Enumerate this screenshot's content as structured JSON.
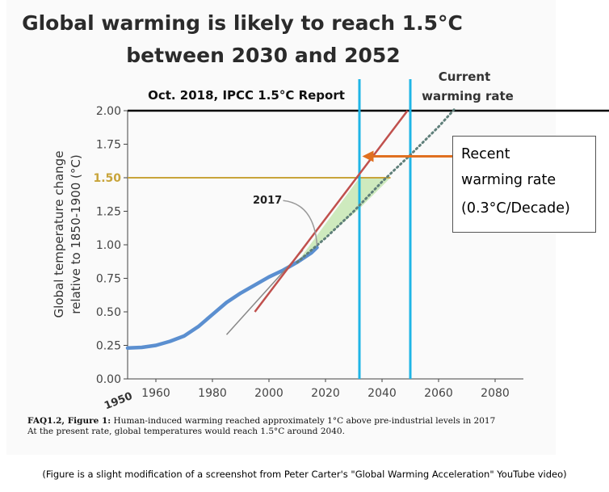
{
  "header": {
    "title_line1": "Global warming is likely to reach 1.5°C",
    "title_line2": "between 2030 and 2052"
  },
  "annotations": {
    "report_label": "Oct. 2018, IPCC 1.5°C Report",
    "current_rate_line1": "Current",
    "current_rate_line2": "warming rate",
    "year_label": "2017",
    "recent_rate_line1": "Recent",
    "recent_rate_line2": "warming rate",
    "recent_rate_line3": "(0.3°C/Decade)",
    "x_start_label": "1950"
  },
  "caption": {
    "bold": "FAQ1.2, Figure 1:",
    "line1": " Human-induced warming reached approximately 1°C above pre-industrial levels in 2017",
    "line2": "At the present rate, global temperatures would reach 1.5°C around 2040."
  },
  "source_note": "(Figure is a  slight modification of a screenshot from Peter Carter's \"Global Warming Acceleration\" YouTube video)",
  "colors": {
    "observed": "#5b8fd0",
    "red_line": "#c0504d",
    "vline": "#1fb5e6",
    "hline_150": "#c8a43a",
    "arrow": "#e07020",
    "fill": "#c6e6b3",
    "dotted": "#5f7f7a",
    "trend": "#888888"
  },
  "chart_data": {
    "type": "line",
    "xlabel": "",
    "ylabel_line1": "Global temperature change",
    "ylabel_line2": "relative to 1850-1900 (°C)",
    "xlim": [
      1950,
      2090
    ],
    "ylim": [
      0,
      2.0
    ],
    "x_ticks": [
      1960,
      1980,
      2000,
      2020,
      2040,
      2060,
      2080
    ],
    "x_tick_labels": [
      "1960",
      "1980",
      "2000",
      "2020",
      "2040",
      "2060",
      "2080"
    ],
    "y_ticks": [
      0,
      0.25,
      0.5,
      0.75,
      1.0,
      1.25,
      1.5,
      1.75,
      2.0
    ],
    "y_tick_labels": [
      "0.00",
      "0.25",
      "0.50",
      "0.75",
      "1.00",
      "1.25",
      "1.50",
      "1.75",
      "2.00"
    ],
    "series": [
      {
        "role": "observed",
        "x": [
          1950,
          1955,
          1960,
          1965,
          1970,
          1975,
          1980,
          1985,
          1990,
          1995,
          2000,
          2005,
          2010,
          2015,
          2017
        ],
        "y": [
          0.23,
          0.235,
          0.25,
          0.28,
          0.32,
          0.39,
          0.48,
          0.57,
          0.64,
          0.7,
          0.76,
          0.81,
          0.87,
          0.94,
          0.98
        ]
      },
      {
        "role": "projection_dotted",
        "x": [
          2010,
          2020,
          2030,
          2040,
          2050,
          2060,
          2066
        ],
        "y": [
          0.87,
          1.05,
          1.25,
          1.47,
          1.67,
          1.88,
          2.02
        ]
      },
      {
        "role": "faint_trend",
        "x": [
          1985,
          2012
        ],
        "y": [
          0.33,
          0.96
        ]
      },
      {
        "role": "recent_rate_line",
        "x": [
          1995,
          2049
        ],
        "y": [
          0.5,
          2.0
        ]
      }
    ],
    "reference_lines": {
      "horizontal": [
        {
          "y": 2.0,
          "x_from": 1950,
          "x_to": 2090
        },
        {
          "y": 1.5,
          "x_from": 1950,
          "x_to": 2043
        }
      ],
      "vertical": [
        {
          "x": 2032
        },
        {
          "x": 2050
        }
      ]
    },
    "shaded_region": {
      "x": [
        2010,
        2032,
        2043,
        2032,
        2020
      ],
      "y": [
        0.87,
        1.5,
        1.5,
        1.27,
        1.05
      ]
    },
    "arrow": {
      "x_from": 2086,
      "x_to": 2033,
      "y": 1.66
    },
    "year_pointer": {
      "x_from": 2005,
      "y_from": 1.33,
      "x_to": 2017,
      "y_to": 1.0
    }
  }
}
